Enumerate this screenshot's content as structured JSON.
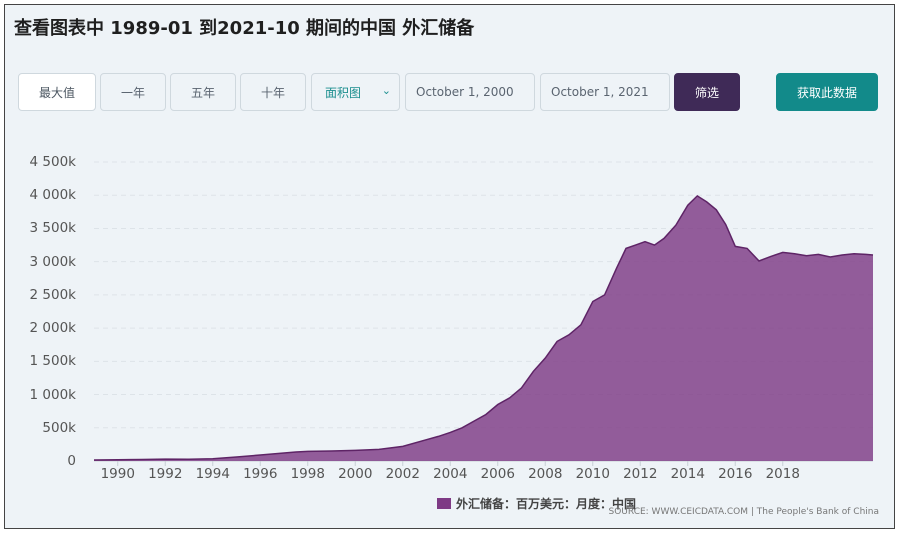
{
  "title": "查看图表中 1989-01 到2021-10 期间的中国 外汇储备",
  "controls": {
    "max_label": "最大值",
    "one_year": "一年",
    "five_years": "五年",
    "ten_years": "十年",
    "chart_type": "面积图",
    "start_date": "October 1, 2000",
    "end_date": "October 1, 2021",
    "filter_label": "筛选",
    "fetch_label": "获取此数据"
  },
  "legend_label": "外汇储备：百万美元：月度：中国",
  "source": "SOURCE: WWW.CEICDATA.COM | The People's Bank of China",
  "colors": {
    "area": "#7e3a85",
    "filter_button": "#3f2a57",
    "fetch_button": "#128a8a",
    "grid": "#dde3e8"
  },
  "chart_data": {
    "type": "area",
    "title": "",
    "xlabel": "",
    "ylabel": "",
    "ylim": [
      0,
      4500000
    ],
    "xlim": [
      1989.0,
      2021.8
    ],
    "grid": true,
    "legend_position": "bottom",
    "yticks": [
      0,
      500000,
      1000000,
      1500000,
      2000000,
      2500000,
      3000000,
      3500000,
      4000000,
      4500000
    ],
    "ytick_labels": [
      "0",
      "500k",
      "1 000k",
      "1 500k",
      "2 000k",
      "2 500k",
      "3 000k",
      "3 500k",
      "4 000k",
      "4 500k"
    ],
    "xticks": [
      1990,
      1992,
      1994,
      1996,
      1998,
      2000,
      2002,
      2004,
      2006,
      2008,
      2010,
      2012,
      2014,
      2016,
      2018
    ],
    "xtick_labels": [
      "1990",
      "1992",
      "1994",
      "1996",
      "1998",
      "2000",
      "2002",
      "2004",
      "2006",
      "2008",
      "2010",
      "2012",
      "2014",
      "2016",
      "2018"
    ],
    "series": [
      {
        "name": "外汇储备：百万美元：月度：中国",
        "x": [
          1989.0,
          1990.0,
          1991.0,
          1992.0,
          1993.0,
          1994.0,
          1995.0,
          1996.0,
          1997.0,
          1997.5,
          1998.0,
          1999.0,
          2000.0,
          2001.0,
          2002.0,
          2003.0,
          2003.5,
          2004.0,
          2004.5,
          2005.0,
          2005.5,
          2006.0,
          2006.5,
          2007.0,
          2007.5,
          2008.0,
          2008.5,
          2009.0,
          2009.5,
          2010.0,
          2010.5,
          2011.0,
          2011.4,
          2011.8,
          2012.2,
          2012.6,
          2013.0,
          2013.5,
          2014.0,
          2014.4,
          2014.8,
          2015.2,
          2015.6,
          2016.0,
          2016.5,
          2017.0,
          2017.5,
          2018.0,
          2018.5,
          2019.0,
          2019.5,
          2020.0,
          2020.5,
          2021.0,
          2021.5,
          2021.8
        ],
        "values": [
          15000,
          18000,
          22000,
          28000,
          25000,
          35000,
          60000,
          90000,
          120000,
          135000,
          145000,
          150000,
          160000,
          175000,
          220000,
          320000,
          370000,
          430000,
          500000,
          600000,
          700000,
          850000,
          950000,
          1100000,
          1350000,
          1550000,
          1800000,
          1900000,
          2050000,
          2400000,
          2500000,
          2900000,
          3200000,
          3250000,
          3300000,
          3250000,
          3350000,
          3550000,
          3850000,
          3990000,
          3900000,
          3780000,
          3560000,
          3230000,
          3200000,
          3010000,
          3080000,
          3140000,
          3120000,
          3090000,
          3110000,
          3070000,
          3100000,
          3120000,
          3110000,
          3100000
        ]
      }
    ]
  }
}
